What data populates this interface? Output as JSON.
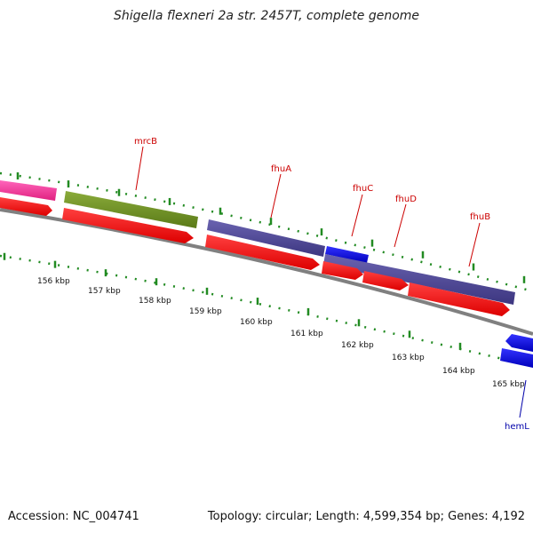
{
  "title": "Shigella flexneri 2a str. 2457T, complete genome",
  "footer": {
    "accession": "Accession: NC_004741",
    "summary": "Topology: circular; Length: 4,599,354 bp; Genes: 4,192"
  },
  "colors": {
    "pink": "#ff3399",
    "olive": "#6b8e23",
    "purple": "#4b4598",
    "blue": "#0000ee",
    "red": "#ff0000",
    "backbone": "#808080",
    "ticks": "#228b22",
    "gene_label_red": "#cc0000",
    "gene_label_blue": "#0000aa"
  },
  "scale_labels": [
    "156 kbp",
    "157 kbp",
    "158 kbp",
    "159 kbp",
    "160 kbp",
    "161 kbp",
    "162 kbp",
    "163 kbp",
    "164 kbp",
    "165 kbp"
  ],
  "gene_labels": [
    {
      "name": "mrcB",
      "color": "#cc0000"
    },
    {
      "name": "fhuA",
      "color": "#cc0000"
    },
    {
      "name": "fhuC",
      "color": "#cc0000"
    },
    {
      "name": "fhuD",
      "color": "#cc0000"
    },
    {
      "name": "fhuB",
      "color": "#cc0000"
    },
    {
      "name": "hemL",
      "color": "#0000aa"
    }
  ]
}
